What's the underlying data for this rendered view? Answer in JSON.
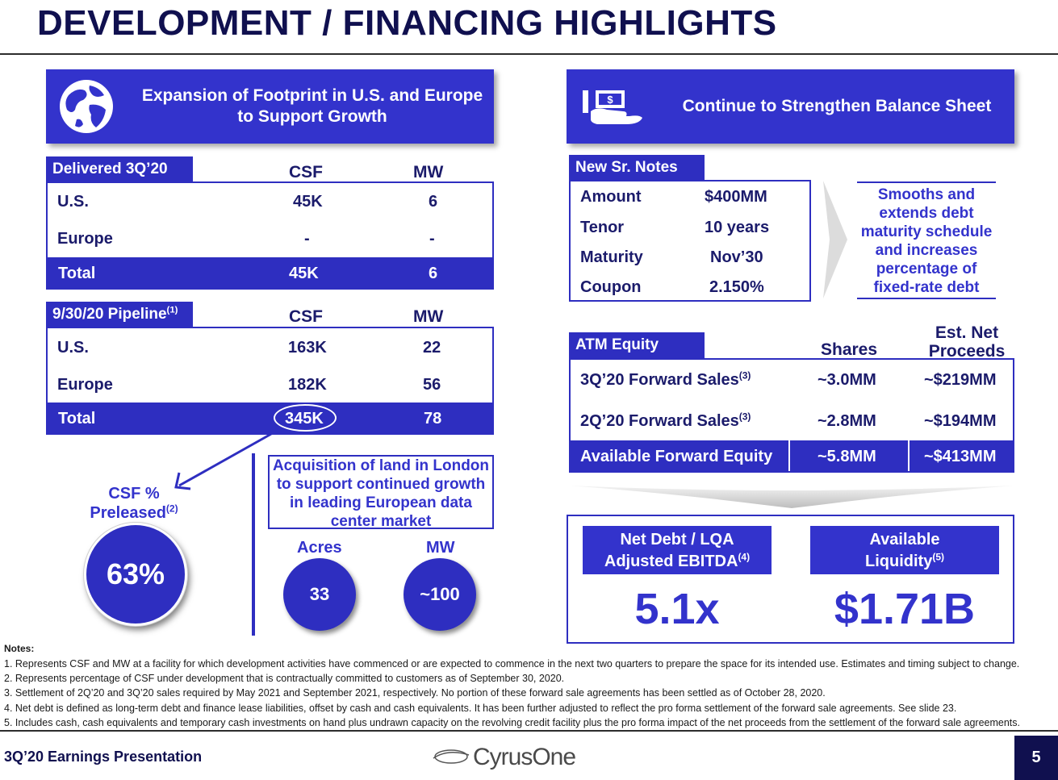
{
  "title": "DEVELOPMENT / FINANCING HIGHLIGHTS",
  "left_banner": {
    "line1": "Expansion of Footprint in U.S. and Europe",
    "line2": "to Support Growth",
    "icon": "globe-icon"
  },
  "right_banner": {
    "text": "Continue to Strengthen Balance Sheet",
    "icon": "cash-hand-icon"
  },
  "delivered": {
    "label": "Delivered 3Q’20",
    "col_csf": "CSF",
    "col_mw": "MW",
    "rows": [
      {
        "name": "U.S.",
        "csf": "45K",
        "mw": "6"
      },
      {
        "name": "Europe",
        "csf": "-",
        "mw": "-"
      }
    ],
    "total": {
      "name": "Total",
      "csf": "45K",
      "mw": "6"
    }
  },
  "pipeline": {
    "label": "9/30/20 Pipeline",
    "label_sup": "(1)",
    "col_csf": "CSF",
    "col_mw": "MW",
    "rows": [
      {
        "name": "U.S.",
        "csf": "163K",
        "mw": "22"
      },
      {
        "name": "Europe",
        "csf": "182K",
        "mw": "56"
      }
    ],
    "total": {
      "name": "Total",
      "csf": "345K",
      "mw": "78"
    }
  },
  "preleased": {
    "label1": "CSF %",
    "label2": "Preleased",
    "sup": "(2)",
    "value": "63%"
  },
  "london": {
    "text": "Acquisition of land in London to support continued growth in leading European data center market",
    "acres_label": "Acres",
    "acres_value": "33",
    "mw_label": "MW",
    "mw_value": "~100"
  },
  "notes_table": {
    "label": "New Sr. Notes",
    "rows": [
      {
        "name": "Amount",
        "value": "$400MM"
      },
      {
        "name": "Tenor",
        "value": "10 years"
      },
      {
        "name": "Maturity",
        "value": "Nov’30"
      },
      {
        "name": "Coupon",
        "value": "2.150%"
      }
    ],
    "callout": "Smooths and extends debt maturity schedule and increases percentage of fixed-rate debt"
  },
  "atm": {
    "label": "ATM Equity",
    "col_shares": "Shares",
    "col_proceeds_1": "Est. Net",
    "col_proceeds_2": "Proceeds",
    "rows": [
      {
        "name": "3Q’20 Forward Sales",
        "sup": "(3)",
        "shares": "~3.0MM",
        "proceeds": "~$219MM"
      },
      {
        "name": "2Q’20 Forward Sales",
        "sup": "(3)",
        "shares": "~2.8MM",
        "proceeds": "~$194MM"
      }
    ],
    "total": {
      "name": "Available Forward Equity",
      "shares": "~5.8MM",
      "proceeds": "~$413MM"
    }
  },
  "kpis": {
    "netdebt_line1": "Net Debt / LQA",
    "netdebt_line2": "Adjusted EBITDA",
    "netdebt_sup": "(4)",
    "netdebt_value": "5.1x",
    "liq_line1": "Available",
    "liq_line2": "Liquidity",
    "liq_sup": "(5)",
    "liq_value": "$1.71B"
  },
  "notes": {
    "heading": "Notes:",
    "items": [
      "1. Represents CSF and MW at a facility for which development activities have commenced or are expected to commence in the next two quarters to prepare the space for its intended use. Estimates and timing subject to change.",
      "2. Represents percentage of CSF under development that is contractually committed to customers as of September 30, 2020.",
      "3. Settlement of 2Q’20 and 3Q’20 sales required by May 2021 and September 2021, respectively. No portion of these forward sale agreements has been settled as of October 28, 2020.",
      "4. Net debt is defined as long-term debt and finance lease liabilities, offset by cash and cash equivalents. It has been further adjusted to reflect the pro forma settlement of the forward sale agreements. See slide 23.",
      "5. Includes cash, cash equivalents and temporary cash investments on hand plus undrawn capacity on the revolving credit facility plus the pro forma impact of the net proceeds from the settlement of the forward sale agreements."
    ]
  },
  "footer": {
    "left": "3Q’20 Earnings Presentation",
    "logo": "CyrusOne",
    "page": "5"
  },
  "colors": {
    "accent": "#2e2ec0",
    "navy": "#10104f"
  }
}
